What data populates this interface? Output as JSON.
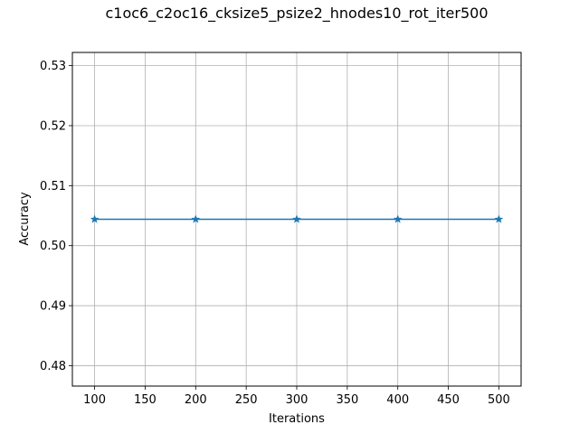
{
  "chart_data": {
    "type": "line",
    "title": "c1oc6_c2oc16_cksize5_psize2_hnodes10_rot_iter500",
    "xlabel": "Iterations",
    "ylabel": "Accuracy",
    "x": [
      100,
      200,
      300,
      400,
      500
    ],
    "series": [
      {
        "values": [
          0.5044,
          0.5044,
          0.5044,
          0.5044,
          0.5044
        ],
        "color": "#1f77b4",
        "marker": "star"
      }
    ],
    "xlim": [
      78,
      522
    ],
    "ylim": [
      0.4766,
      0.5322
    ],
    "xticks": [
      100,
      150,
      200,
      250,
      300,
      350,
      400,
      450,
      500
    ],
    "xtick_labels": [
      "100",
      "150",
      "200",
      "250",
      "300",
      "350",
      "400",
      "450",
      "500"
    ],
    "yticks": [
      0.48,
      0.49,
      0.5,
      0.51,
      0.52,
      0.53
    ],
    "ytick_labels": [
      "0.48",
      "0.49",
      "0.50",
      "0.51",
      "0.52",
      "0.53"
    ],
    "grid": true,
    "legend": "none"
  }
}
